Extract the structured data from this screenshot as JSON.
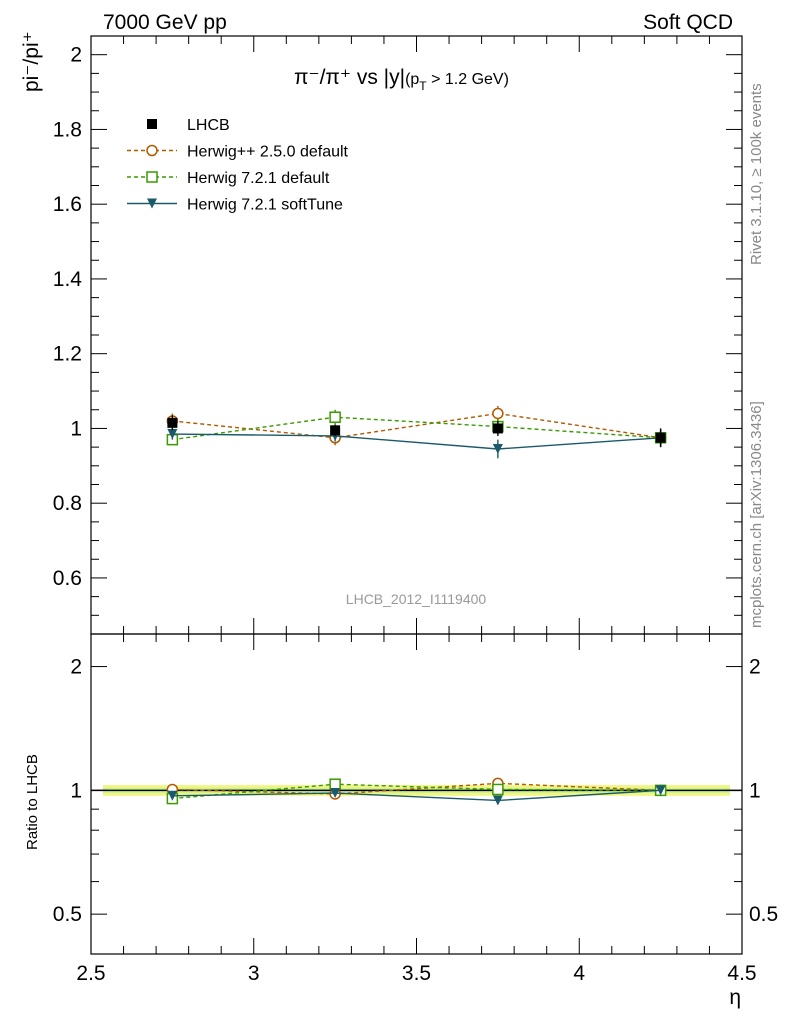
{
  "header": {
    "energy_label": "7000 GeV pp",
    "process_label": "Soft QCD"
  },
  "side_labels": {
    "rivet": "Rivet 3.1.10, ≥ 100k events",
    "mcplots": "mcplots.cern.ch [arXiv:1306.3436]"
  },
  "plot_title": {
    "main": "π⁻/π⁺ vs |y|",
    "cut_open": "(p",
    "cut_sub": "T",
    "cut_close": " > 1.2 GeV)"
  },
  "watermark": "LHCB_2012_I1119400",
  "chart_data": [
    {
      "type": "line",
      "panel": "main",
      "ylabel": "pi⁻/pi⁺",
      "xlim": [
        2.5,
        4.5
      ],
      "ylim": [
        0.45,
        2.05
      ],
      "yticks": [
        0.6,
        0.8,
        1,
        1.2,
        1.4,
        1.6,
        1.8,
        2
      ],
      "ytick_labels": [
        "0.6",
        "0.8",
        "1",
        "1.2",
        "1.4",
        "1.6",
        "1.8",
        "2"
      ],
      "legend_position": "top-left",
      "x": [
        2.75,
        3.25,
        3.75,
        4.25
      ],
      "series": [
        {
          "name": "LHCB",
          "color": "#000000",
          "marker": "filled-square",
          "line": "none",
          "values": [
            1.015,
            0.995,
            1.0,
            0.975
          ],
          "errors": [
            0.02,
            0.015,
            0.02,
            0.025
          ]
        },
        {
          "name": "Herwig++ 2.5.0 default",
          "color": "#b35900",
          "marker": "open-circle",
          "line": "dashed",
          "values": [
            1.02,
            0.975,
            1.04,
            0.975
          ],
          "errors": [
            0.02,
            0.02,
            0.02,
            0.02
          ]
        },
        {
          "name": "Herwig 7.2.1 default",
          "color": "#3a9a00",
          "marker": "open-square",
          "line": "dashed",
          "values": [
            0.97,
            1.03,
            1.005,
            0.975
          ],
          "errors": [
            0.015,
            0.02,
            0.02,
            0.02
          ]
        },
        {
          "name": "Herwig 7.2.1 softTune",
          "color": "#1a5a6a",
          "marker": "filled-triangle-down",
          "line": "solid",
          "values": [
            0.985,
            0.98,
            0.945,
            0.975
          ],
          "errors": [
            0.015,
            0.015,
            0.025,
            0.025
          ]
        }
      ]
    },
    {
      "type": "line",
      "panel": "ratio",
      "ylabel": "Ratio to LHCB",
      "xlabel": "η",
      "xlim": [
        2.5,
        4.5
      ],
      "xticks": [
        2.5,
        3,
        3.5,
        4,
        4.5
      ],
      "xtick_labels": [
        "2.5",
        "3",
        "3.5",
        "4",
        "4.5"
      ],
      "ylim": [
        0.4,
        2.4
      ],
      "yscale": "log",
      "yticks": [
        0.5,
        1,
        2
      ],
      "ytick_labels": [
        "0.5",
        "1",
        "2"
      ],
      "reference_band": [
        0.97,
        1.03
      ],
      "x": [
        2.75,
        3.25,
        3.75,
        4.25
      ],
      "series": [
        {
          "name": "Herwig++ 2.5.0 default",
          "values": [
            1.005,
            0.98,
            1.04,
            1.0
          ]
        },
        {
          "name": "Herwig 7.2.1 default",
          "values": [
            0.955,
            1.035,
            1.005,
            1.0
          ]
        },
        {
          "name": "Herwig 7.2.1 softTune",
          "values": [
            0.97,
            0.985,
            0.945,
            1.0
          ]
        }
      ]
    }
  ]
}
